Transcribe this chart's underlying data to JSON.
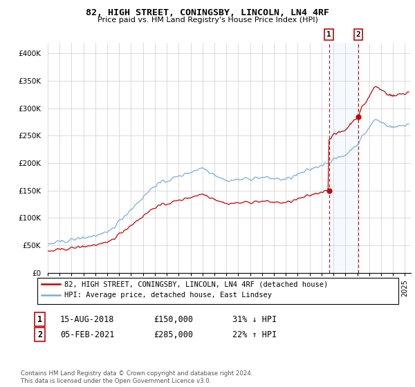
{
  "title": "82, HIGH STREET, CONINGSBY, LINCOLN, LN4 4RF",
  "subtitle": "Price paid vs. HM Land Registry's House Price Index (HPI)",
  "ylabel_ticks": [
    "£0",
    "£50K",
    "£100K",
    "£150K",
    "£200K",
    "£250K",
    "£300K",
    "£350K",
    "£400K"
  ],
  "ytick_values": [
    0,
    50000,
    100000,
    150000,
    200000,
    250000,
    300000,
    350000,
    400000
  ],
  "ylim": [
    0,
    420000
  ],
  "xlim_start": 1995.0,
  "xlim_end": 2025.5,
  "marker1_x": 2018.617,
  "marker1_price": 150000,
  "marker2_x": 2021.087,
  "marker2_price": 285000,
  "legend_line1": "82, HIGH STREET, CONINGSBY, LINCOLN, LN4 4RF (detached house)",
  "legend_line2": "HPI: Average price, detached house, East Lindsey",
  "footer": "Contains HM Land Registry data © Crown copyright and database right 2024.\nThis data is licensed under the Open Government Licence v3.0.",
  "table_row1": [
    "1",
    "15-AUG-2018",
    "£150,000",
    "31% ↓ HPI"
  ],
  "table_row2": [
    "2",
    "05-FEB-2021",
    "£285,000",
    "22% ↑ HPI"
  ],
  "line_color_red": "#cc0000",
  "line_color_blue": "#7aade0",
  "shade_color": "#ddeeff",
  "box_color": "#cc0000",
  "grid_color": "#cccccc",
  "bg_color": "#ffffff"
}
